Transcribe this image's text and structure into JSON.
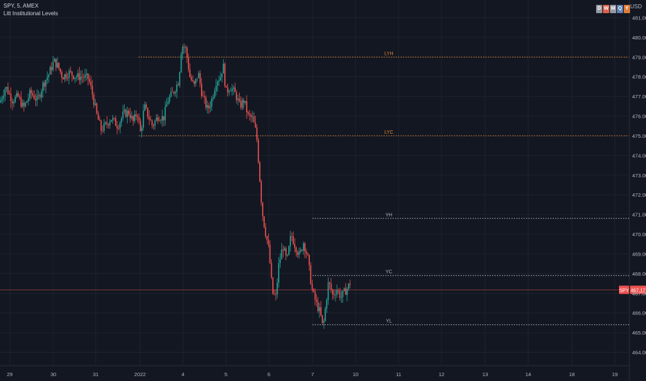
{
  "header": {
    "title": "SPY, 5, AMEX",
    "indicator": "Litt Institutional Levels",
    "currency": "USD"
  },
  "period_badges": [
    {
      "label": "D",
      "color": "#9598a1"
    },
    {
      "label": "W",
      "color": "#e0604a"
    },
    {
      "label": "M",
      "color": "#9598a1"
    },
    {
      "label": "Q",
      "color": "#5b7fb5"
    },
    {
      "label": "Y",
      "color": "#e07b39"
    }
  ],
  "colors": {
    "background": "#131722",
    "up": "#26a69a",
    "down": "#ef5350",
    "level_orange": "#e0862e",
    "level_white": "#b2b5be",
    "price_line": "#ef5350"
  },
  "chart_data": {
    "type": "candlestick",
    "symbol": "SPY",
    "interval": "5",
    "exchange": "AMEX",
    "ylim": [
      463.2,
      481.5
    ],
    "y_ticks": [
      "464.00",
      "465.00",
      "466.00",
      "467.00",
      "468.00",
      "469.00",
      "470.00",
      "471.00",
      "472.00",
      "473.00",
      "474.00",
      "475.00",
      "476.00",
      "477.00",
      "478.00",
      "479.00",
      "480.00",
      "481.00"
    ],
    "x_ticks": [
      "29",
      "30",
      "31",
      "2022",
      "4",
      "5",
      "6",
      "7",
      "10",
      "11",
      "12",
      "13",
      "14",
      "18",
      "19"
    ],
    "last_price": {
      "label": "SPY",
      "value": "467.17",
      "color": "#ef5350"
    },
    "levels": [
      {
        "name": "LYH",
        "value": 479.0,
        "color": "#e0862e"
      },
      {
        "name": "LYC",
        "value": 475.0,
        "color": "#e0862e"
      },
      {
        "name": "YH",
        "value": 470.8,
        "color": "#b2b5be"
      },
      {
        "name": "YC",
        "value": 467.9,
        "color": "#b2b5be"
      },
      {
        "name": "YL",
        "value": 465.4,
        "color": "#b2b5be"
      }
    ],
    "price_path": [
      [
        0,
        476.7
      ],
      [
        8,
        477.5
      ],
      [
        18,
        476.8
      ],
      [
        26,
        477.0
      ],
      [
        34,
        476.4
      ],
      [
        44,
        477.2
      ],
      [
        54,
        476.8
      ],
      [
        62,
        477.6
      ],
      [
        70,
        478.1
      ],
      [
        78,
        478.8
      ],
      [
        84,
        478.5
      ],
      [
        90,
        478.0
      ],
      [
        100,
        478.2
      ],
      [
        110,
        478.0
      ],
      [
        120,
        478.0
      ],
      [
        128,
        477.9
      ],
      [
        134,
        477.0
      ],
      [
        140,
        476.0
      ],
      [
        146,
        475.3
      ],
      [
        154,
        475.6
      ],
      [
        160,
        475.9
      ],
      [
        170,
        475.5
      ],
      [
        178,
        476.1
      ],
      [
        186,
        476.2
      ],
      [
        192,
        475.7
      ],
      [
        198,
        476.2
      ],
      [
        203,
        475.1
      ],
      [
        208,
        476.5
      ],
      [
        214,
        476.0
      ],
      [
        220,
        475.5
      ],
      [
        228,
        476.0
      ],
      [
        236,
        475.9
      ],
      [
        242,
        476.8
      ],
      [
        250,
        477.2
      ],
      [
        258,
        477.8
      ],
      [
        262,
        479.6
      ],
      [
        268,
        479.4
      ],
      [
        274,
        478.0
      ],
      [
        280,
        477.5
      ],
      [
        286,
        478.2
      ],
      [
        292,
        477.0
      ],
      [
        300,
        476.3
      ],
      [
        306,
        476.9
      ],
      [
        312,
        477.8
      ],
      [
        318,
        478.0
      ],
      [
        322,
        478.6
      ],
      [
        326,
        477.2
      ],
      [
        332,
        477.5
      ],
      [
        340,
        477.1
      ],
      [
        346,
        476.5
      ],
      [
        352,
        476.8
      ],
      [
        358,
        476.0
      ],
      [
        364,
        475.9
      ],
      [
        370,
        475.1
      ],
      [
        374,
        473.2
      ],
      [
        378,
        471.2
      ],
      [
        382,
        470.3
      ],
      [
        388,
        469.2
      ],
      [
        393,
        467.0
      ],
      [
        398,
        466.8
      ],
      [
        402,
        468.4
      ],
      [
        408,
        469.4
      ],
      [
        414,
        468.6
      ],
      [
        420,
        470.0
      ],
      [
        426,
        469.4
      ],
      [
        432,
        468.9
      ],
      [
        438,
        469.6
      ],
      [
        444,
        468.8
      ],
      [
        450,
        467.2
      ],
      [
        456,
        466.5
      ],
      [
        462,
        466.0
      ],
      [
        466,
        465.2
      ],
      [
        470,
        466.4
      ],
      [
        474,
        467.6
      ],
      [
        480,
        466.9
      ],
      [
        486,
        467.2
      ],
      [
        492,
        466.8
      ],
      [
        498,
        467.1
      ],
      [
        502,
        467.3
      ],
      [
        506,
        467.6
      ],
      [
        510,
        467.17
      ]
    ]
  }
}
